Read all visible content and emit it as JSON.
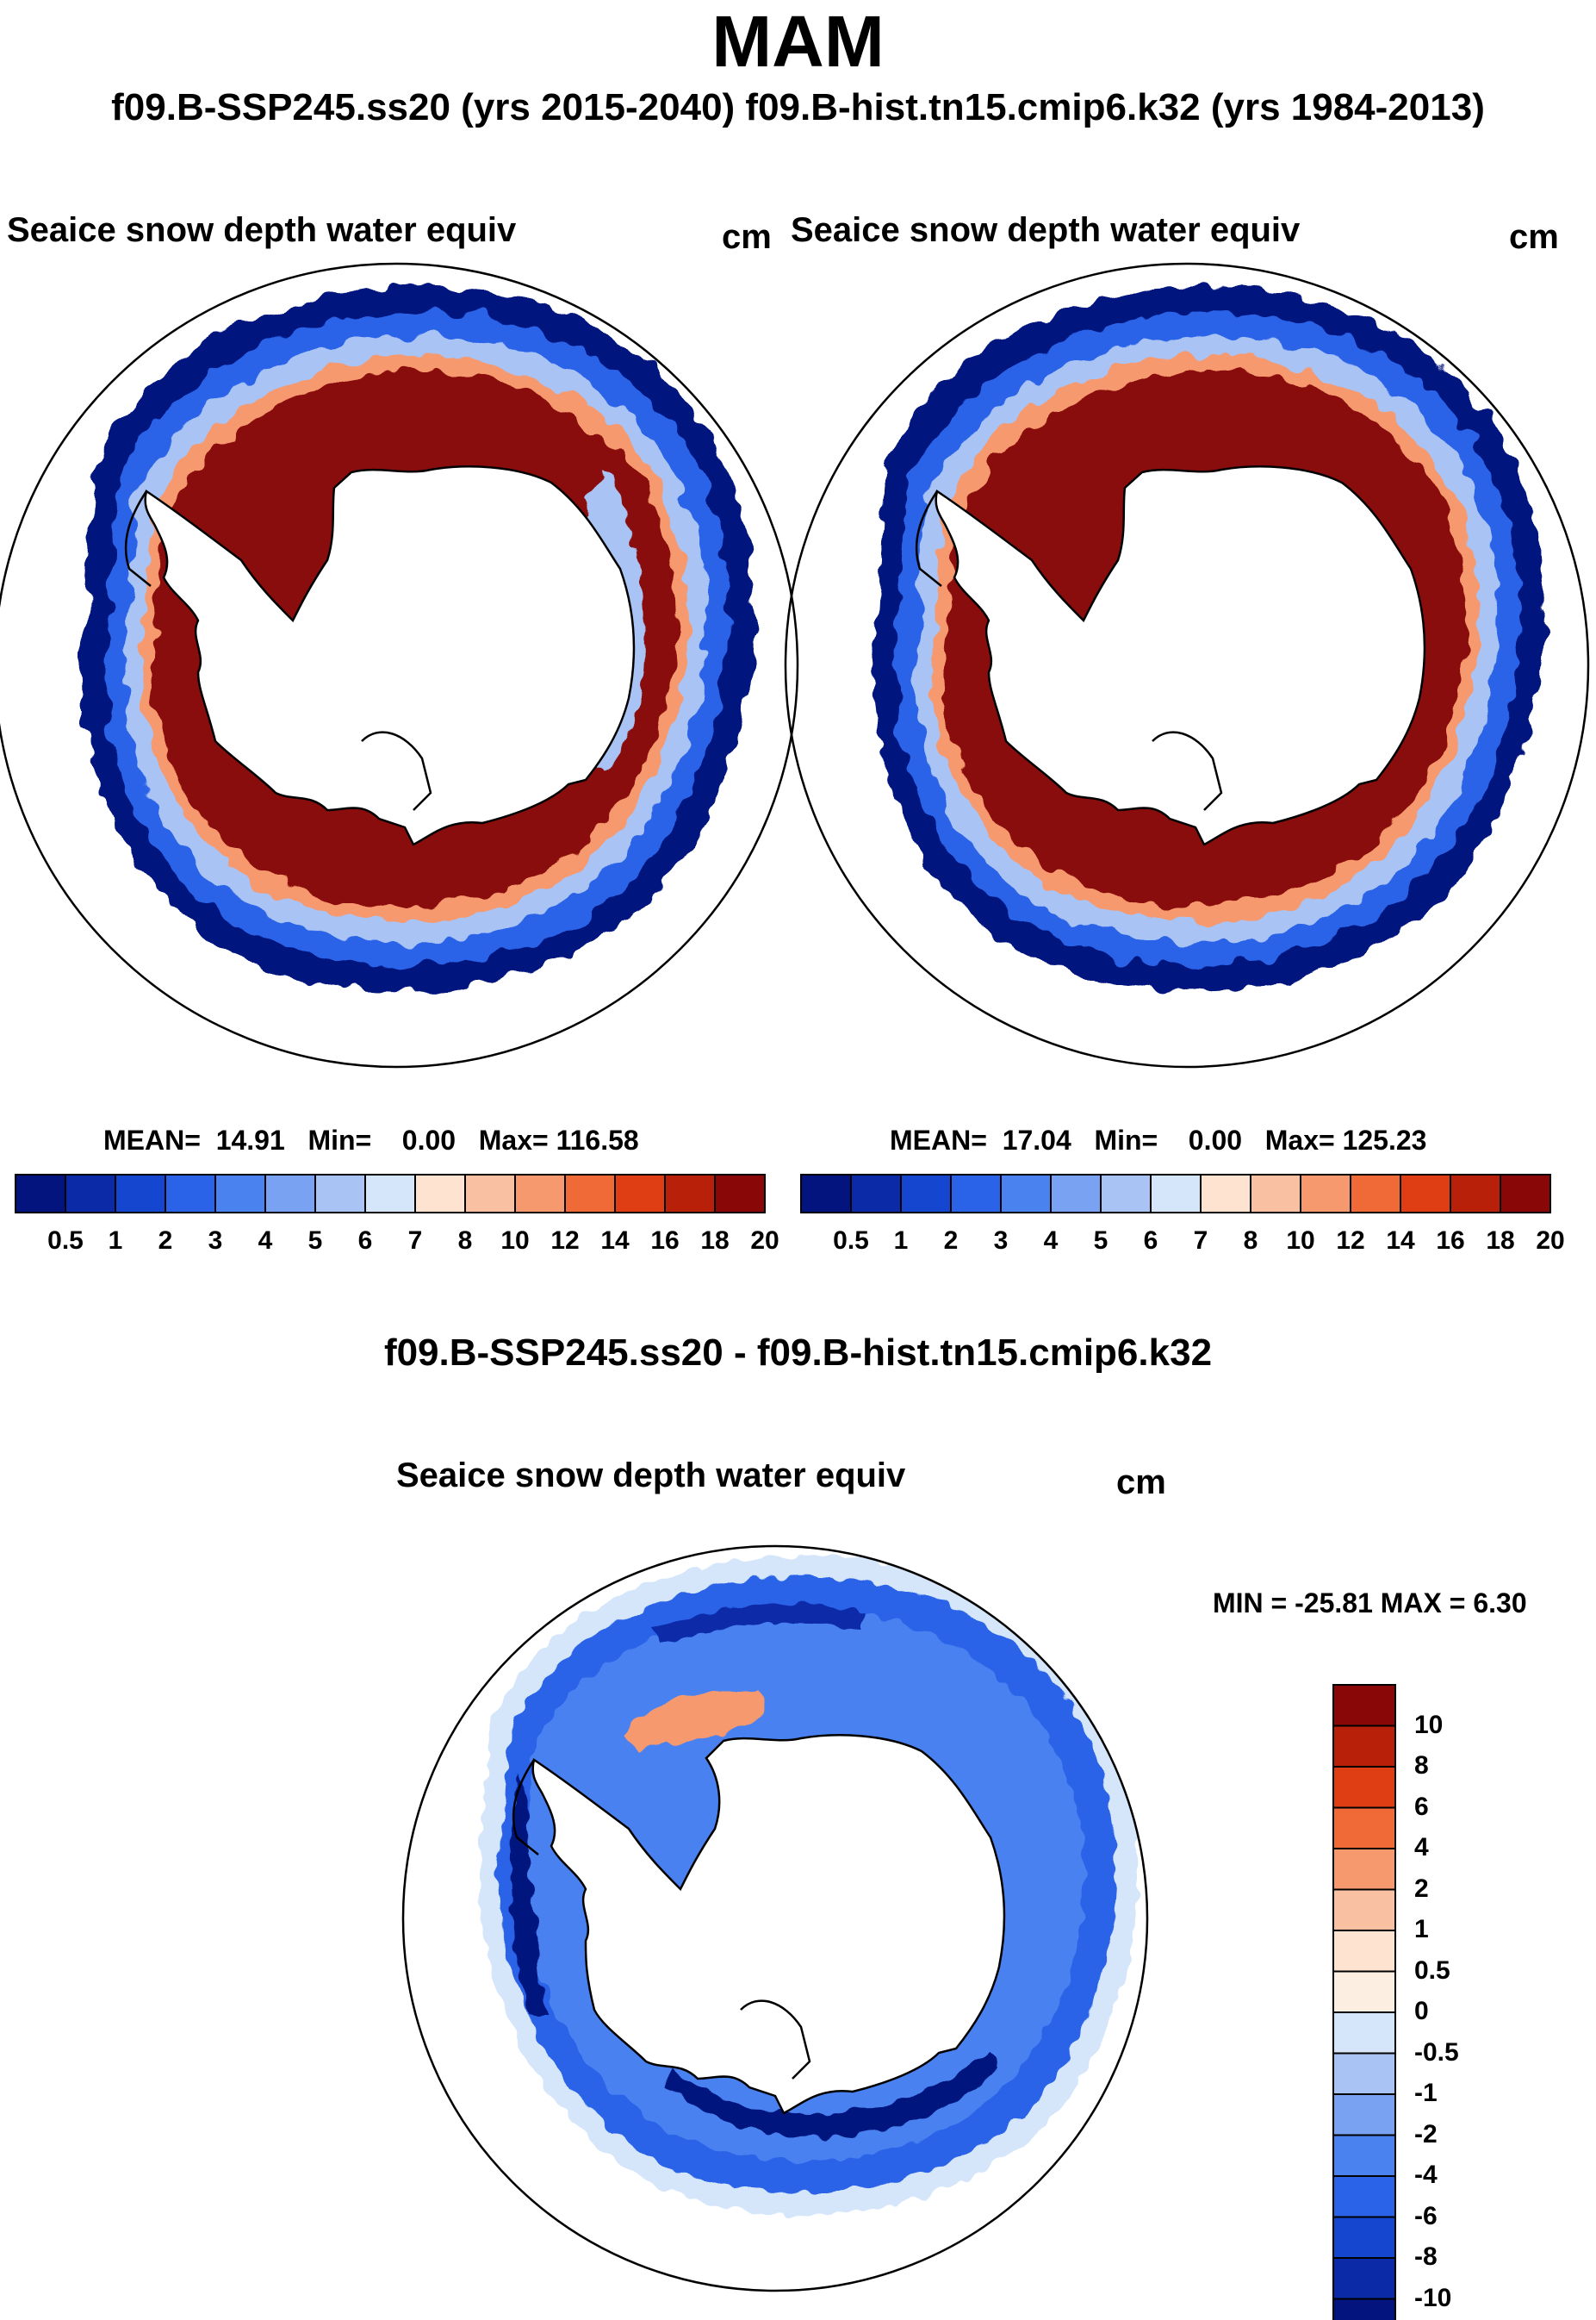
{
  "figure": {
    "season": "MAM",
    "subtitle": "f09.B-SSP245.ss20 (yrs 2015-2040)  f09.B-hist.tn15.cmip6.k32 (yrs 1984-2013)"
  },
  "panel_left": {
    "title": "Seaice snow depth water equiv",
    "units": "cm",
    "mean_label": "MEAN=",
    "mean_value": "14.91",
    "min_label": "Min=",
    "min_value": "0.00",
    "max_label": "Max=",
    "max_value": "116.58"
  },
  "panel_right": {
    "title": "Seaice snow depth water equiv",
    "units": "cm",
    "mean_label": "MEAN=",
    "mean_value": "17.04",
    "min_label": "Min=",
    "min_value": "0.00",
    "max_label": "Max=",
    "max_value": "125.23"
  },
  "panel_diff": {
    "header": "f09.B-SSP245.ss20 - f09.B-hist.tn15.cmip6.k32",
    "title": "Seaice snow depth water equiv",
    "units": "cm",
    "minmax_text": "MIN = -25.81 MAX =    6.30"
  },
  "colorbars": {
    "abs_levels": [
      "0.5",
      "1",
      "2",
      "3",
      "4",
      "5",
      "6",
      "7",
      "8",
      "10",
      "12",
      "14",
      "16",
      "18",
      "20"
    ],
    "abs_colors": [
      "#04147e",
      "#0a2aa8",
      "#1446d0",
      "#2a63e8",
      "#4a82f0",
      "#7aa2f2",
      "#a9c3f5",
      "#d5e6fb",
      "#fde3d0",
      "#f9c0a2",
      "#f6996e",
      "#f06a37",
      "#df3e14",
      "#b8200a",
      "#8a0707"
    ],
    "diff_levels": [
      "10",
      "8",
      "6",
      "4",
      "2",
      "1",
      "0.5",
      "0",
      "-0.5",
      "-1",
      "-2",
      "-4",
      "-6",
      "-8",
      "-10"
    ],
    "diff_colors": [
      "#8a0707",
      "#b8200a",
      "#df3e14",
      "#f06a37",
      "#f6996e",
      "#f9c0a2",
      "#fde3d0",
      "#fdeee2",
      "#d5e6fb",
      "#a9c3f5",
      "#7aa2f2",
      "#4a82f0",
      "#2a63e8",
      "#1446d0",
      "#0a2aa8",
      "#04147e"
    ]
  }
}
